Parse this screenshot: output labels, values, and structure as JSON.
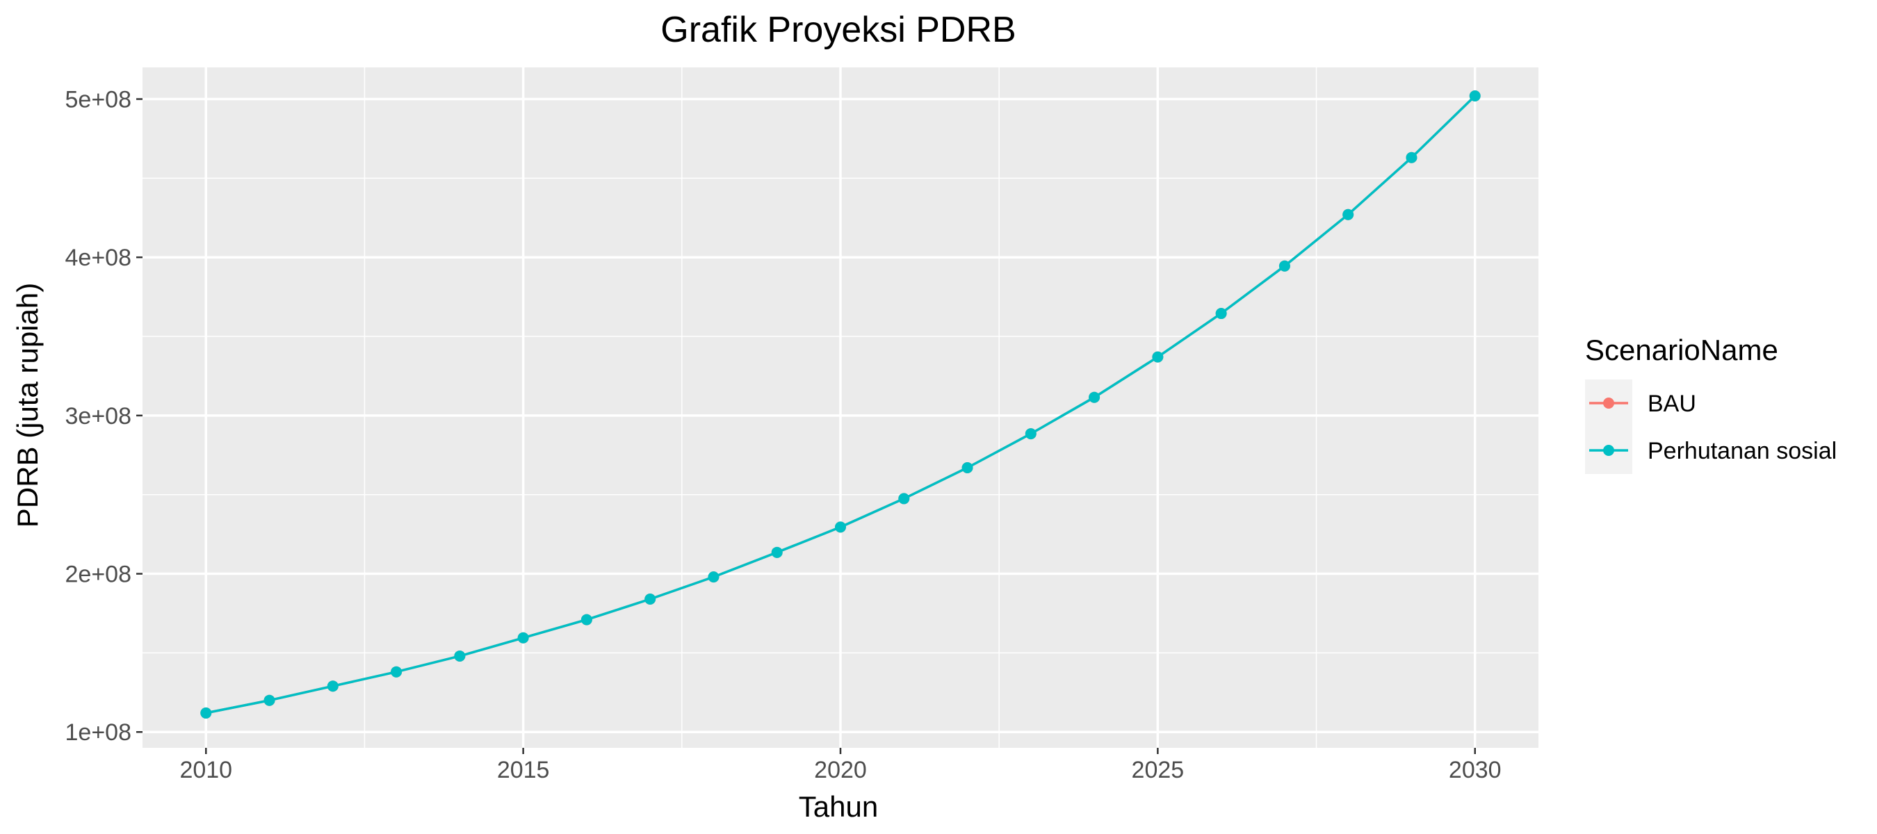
{
  "chart_data": {
    "type": "line",
    "title": "Grafik Proyeksi PDRB",
    "xlabel": "Tahun",
    "ylabel": "PDRB (juta rupiah)",
    "xlim": [
      2009,
      2031
    ],
    "ylim": [
      90000000,
      520000000
    ],
    "x_ticks": [
      2010,
      2015,
      2020,
      2025,
      2030
    ],
    "x_tick_labels": [
      "2010",
      "2015",
      "2020",
      "2025",
      "2030"
    ],
    "y_ticks": [
      100000000,
      200000000,
      300000000,
      400000000,
      500000000
    ],
    "y_tick_labels": [
      "1e+08",
      "2e+08",
      "3e+08",
      "4e+08",
      "5e+08"
    ],
    "x_minor": [
      2012.5,
      2017.5,
      2022.5,
      2027.5
    ],
    "y_minor": [
      150000000,
      250000000,
      350000000,
      450000000
    ],
    "grid": true,
    "legend": {
      "title": "ScenarioName",
      "placement": "right",
      "entries": [
        "BAU",
        "Perhutanan sosial"
      ]
    },
    "x": [
      2010,
      2011,
      2012,
      2013,
      2014,
      2015,
      2016,
      2017,
      2018,
      2019,
      2020,
      2021,
      2022,
      2023,
      2024,
      2025,
      2026,
      2027,
      2028,
      2029,
      2030
    ],
    "series": [
      {
        "name": "BAU",
        "color": "#F8766D",
        "values": [
          112000000,
          120000000,
          129000000,
          138000000,
          148000000,
          159500000,
          171000000,
          184000000,
          198000000,
          213500000,
          229500000,
          247500000,
          267000000,
          288500000,
          311500000,
          337000000,
          364500000,
          394500000,
          427000000,
          463000000,
          502000000
        ]
      },
      {
        "name": "Perhutanan sosial",
        "color": "#00BFC4",
        "values": [
          112000000,
          120000000,
          129000000,
          138000000,
          148000000,
          159500000,
          171000000,
          184000000,
          198000000,
          213500000,
          229500000,
          247500000,
          267000000,
          288500000,
          311500000,
          337000000,
          364500000,
          394500000,
          427000000,
          463000000,
          502000000
        ]
      }
    ]
  }
}
